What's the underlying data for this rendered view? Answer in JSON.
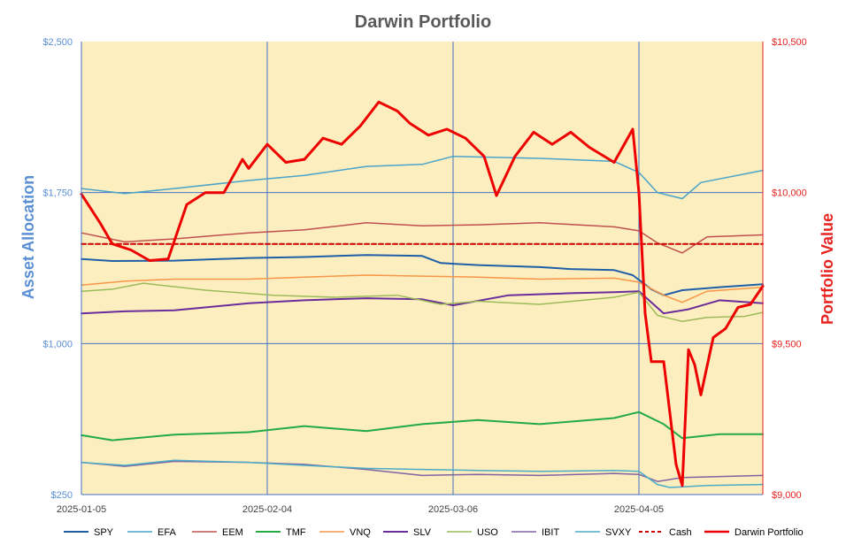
{
  "chart_data": {
    "type": "line",
    "title": "Darwin Portfolio",
    "ylabel_left": "Asset Allocation",
    "ylabel_right": "Portfolio Value",
    "left_axis": {
      "min": 250,
      "max": 2500,
      "ticks": [
        "$250",
        "$1,000",
        "$1,750",
        "$2,500"
      ]
    },
    "right_axis": {
      "min": 9000,
      "max": 10500,
      "ticks": [
        "$9,000",
        "$9,500",
        "$10,000",
        "$10,500"
      ]
    },
    "x_ticks": [
      "2025-01-05",
      "2025-02-04",
      "2025-03-06",
      "2025-04-05"
    ],
    "x_range": [
      "2025-01-05",
      "2025-04-25"
    ],
    "grid": true,
    "plot_background": "#fdeec0",
    "legend_position": "bottom",
    "series": [
      {
        "name": "SPY",
        "axis": "left",
        "color": "#1f5fa8",
        "width": 2,
        "points": [
          [
            "2025-01-05",
            1420
          ],
          [
            "2025-01-10",
            1410
          ],
          [
            "2025-01-20",
            1412
          ],
          [
            "2025-02-01",
            1425
          ],
          [
            "2025-02-10",
            1430
          ],
          [
            "2025-02-20",
            1440
          ],
          [
            "2025-03-01",
            1435
          ],
          [
            "2025-03-04",
            1400
          ],
          [
            "2025-03-10",
            1390
          ],
          [
            "2025-03-20",
            1380
          ],
          [
            "2025-03-25",
            1370
          ],
          [
            "2025-04-01",
            1365
          ],
          [
            "2025-04-04",
            1340
          ],
          [
            "2025-04-07",
            1270
          ],
          [
            "2025-04-09",
            1240
          ],
          [
            "2025-04-12",
            1265
          ],
          [
            "2025-04-18",
            1280
          ],
          [
            "2025-04-25",
            1295
          ]
        ]
      },
      {
        "name": "EFA",
        "axis": "left",
        "color": "#4aa3c9",
        "width": 1.5,
        "points": [
          [
            "2025-01-05",
            1770
          ],
          [
            "2025-01-12",
            1745
          ],
          [
            "2025-01-20",
            1770
          ],
          [
            "2025-02-01",
            1810
          ],
          [
            "2025-02-10",
            1835
          ],
          [
            "2025-02-20",
            1880
          ],
          [
            "2025-03-01",
            1890
          ],
          [
            "2025-03-06",
            1930
          ],
          [
            "2025-03-20",
            1920
          ],
          [
            "2025-04-01",
            1905
          ],
          [
            "2025-04-05",
            1850
          ],
          [
            "2025-04-08",
            1750
          ],
          [
            "2025-04-12",
            1720
          ],
          [
            "2025-04-15",
            1800
          ],
          [
            "2025-04-25",
            1860
          ]
        ]
      },
      {
        "name": "EEM",
        "axis": "left",
        "color": "#c0504d",
        "width": 1.5,
        "points": [
          [
            "2025-01-05",
            1550
          ],
          [
            "2025-01-12",
            1505
          ],
          [
            "2025-01-20",
            1520
          ],
          [
            "2025-02-01",
            1550
          ],
          [
            "2025-02-10",
            1565
          ],
          [
            "2025-02-20",
            1600
          ],
          [
            "2025-03-01",
            1585
          ],
          [
            "2025-03-10",
            1590
          ],
          [
            "2025-03-20",
            1600
          ],
          [
            "2025-04-01",
            1580
          ],
          [
            "2025-04-05",
            1560
          ],
          [
            "2025-04-08",
            1500
          ],
          [
            "2025-04-12",
            1450
          ],
          [
            "2025-04-16",
            1530
          ],
          [
            "2025-04-25",
            1540
          ]
        ]
      },
      {
        "name": "TMF",
        "axis": "left",
        "color": "#22aa44",
        "width": 2,
        "points": [
          [
            "2025-01-05",
            545
          ],
          [
            "2025-01-10",
            520
          ],
          [
            "2025-01-20",
            548
          ],
          [
            "2025-02-01",
            560
          ],
          [
            "2025-02-10",
            590
          ],
          [
            "2025-02-20",
            565
          ],
          [
            "2025-03-01",
            600
          ],
          [
            "2025-03-10",
            620
          ],
          [
            "2025-03-20",
            600
          ],
          [
            "2025-04-01",
            630
          ],
          [
            "2025-04-05",
            660
          ],
          [
            "2025-04-09",
            600
          ],
          [
            "2025-04-12",
            530
          ],
          [
            "2025-04-18",
            550
          ],
          [
            "2025-04-25",
            550
          ]
        ]
      },
      {
        "name": "VNQ",
        "axis": "left",
        "color": "#f79646",
        "width": 1.5,
        "points": [
          [
            "2025-01-05",
            1290
          ],
          [
            "2025-01-12",
            1310
          ],
          [
            "2025-01-20",
            1320
          ],
          [
            "2025-02-01",
            1320
          ],
          [
            "2025-02-10",
            1330
          ],
          [
            "2025-02-20",
            1340
          ],
          [
            "2025-03-01",
            1335
          ],
          [
            "2025-03-10",
            1330
          ],
          [
            "2025-03-20",
            1320
          ],
          [
            "2025-04-01",
            1325
          ],
          [
            "2025-04-05",
            1305
          ],
          [
            "2025-04-09",
            1240
          ],
          [
            "2025-04-12",
            1205
          ],
          [
            "2025-04-16",
            1260
          ],
          [
            "2025-04-25",
            1280
          ]
        ]
      },
      {
        "name": "SLV",
        "axis": "left",
        "color": "#6a2c9a",
        "width": 2,
        "points": [
          [
            "2025-01-05",
            1150
          ],
          [
            "2025-01-12",
            1160
          ],
          [
            "2025-01-20",
            1165
          ],
          [
            "2025-02-01",
            1200
          ],
          [
            "2025-02-10",
            1215
          ],
          [
            "2025-02-20",
            1225
          ],
          [
            "2025-03-01",
            1220
          ],
          [
            "2025-03-06",
            1190
          ],
          [
            "2025-03-15",
            1240
          ],
          [
            "2025-03-25",
            1250
          ],
          [
            "2025-04-01",
            1255
          ],
          [
            "2025-04-05",
            1260
          ],
          [
            "2025-04-09",
            1150
          ],
          [
            "2025-04-13",
            1170
          ],
          [
            "2025-04-18",
            1215
          ],
          [
            "2025-04-25",
            1200
          ]
        ]
      },
      {
        "name": "USO",
        "axis": "left",
        "color": "#9bbb59",
        "width": 1.5,
        "points": [
          [
            "2025-01-05",
            1260
          ],
          [
            "2025-01-10",
            1270
          ],
          [
            "2025-01-15",
            1300
          ],
          [
            "2025-01-25",
            1265
          ],
          [
            "2025-02-05",
            1240
          ],
          [
            "2025-02-15",
            1230
          ],
          [
            "2025-02-25",
            1240
          ],
          [
            "2025-03-04",
            1195
          ],
          [
            "2025-03-10",
            1210
          ],
          [
            "2025-03-20",
            1195
          ],
          [
            "2025-04-01",
            1230
          ],
          [
            "2025-04-05",
            1255
          ],
          [
            "2025-04-08",
            1140
          ],
          [
            "2025-04-12",
            1110
          ],
          [
            "2025-04-16",
            1130
          ],
          [
            "2025-04-22",
            1135
          ],
          [
            "2025-04-25",
            1155
          ]
        ]
      },
      {
        "name": "IBIT",
        "axis": "left",
        "color": "#8064a2",
        "width": 1.5,
        "points": [
          [
            "2025-01-05",
            410
          ],
          [
            "2025-01-12",
            390
          ],
          [
            "2025-01-20",
            415
          ],
          [
            "2025-02-01",
            410
          ],
          [
            "2025-02-10",
            400
          ],
          [
            "2025-02-20",
            375
          ],
          [
            "2025-03-01",
            345
          ],
          [
            "2025-03-10",
            350
          ],
          [
            "2025-03-20",
            345
          ],
          [
            "2025-04-01",
            355
          ],
          [
            "2025-04-05",
            350
          ],
          [
            "2025-04-08",
            315
          ],
          [
            "2025-04-12",
            335
          ],
          [
            "2025-04-25",
            345
          ]
        ]
      },
      {
        "name": "SVXY",
        "axis": "left",
        "color": "#4bacc6",
        "width": 1.5,
        "points": [
          [
            "2025-01-05",
            410
          ],
          [
            "2025-01-12",
            395
          ],
          [
            "2025-01-20",
            420
          ],
          [
            "2025-02-01",
            410
          ],
          [
            "2025-02-10",
            395
          ],
          [
            "2025-02-20",
            380
          ],
          [
            "2025-03-01",
            375
          ],
          [
            "2025-03-10",
            370
          ],
          [
            "2025-03-20",
            365
          ],
          [
            "2025-04-01",
            370
          ],
          [
            "2025-04-05",
            365
          ],
          [
            "2025-04-08",
            300
          ],
          [
            "2025-04-10",
            285
          ],
          [
            "2025-04-16",
            295
          ],
          [
            "2025-04-25",
            300
          ]
        ]
      },
      {
        "name": "Cash",
        "axis": "left",
        "color": "#cc0000",
        "width": 2,
        "dashed": true,
        "points": [
          [
            "2025-01-05",
            1495
          ],
          [
            "2025-04-25",
            1495
          ]
        ]
      },
      {
        "name": "Darwin Portfolio",
        "axis": "right",
        "color": "#ee0000",
        "width": 3,
        "points": [
          [
            "2025-01-05",
            9995
          ],
          [
            "2025-01-08",
            9900
          ],
          [
            "2025-01-10",
            9830
          ],
          [
            "2025-01-13",
            9810
          ],
          [
            "2025-01-16",
            9775
          ],
          [
            "2025-01-19",
            9780
          ],
          [
            "2025-01-22",
            9960
          ],
          [
            "2025-01-25",
            10000
          ],
          [
            "2025-01-28",
            10000
          ],
          [
            "2025-01-31",
            10110
          ],
          [
            "2025-02-01",
            10080
          ],
          [
            "2025-02-04",
            10160
          ],
          [
            "2025-02-07",
            10100
          ],
          [
            "2025-02-10",
            10110
          ],
          [
            "2025-02-13",
            10180
          ],
          [
            "2025-02-16",
            10160
          ],
          [
            "2025-02-19",
            10220
          ],
          [
            "2025-02-22",
            10300
          ],
          [
            "2025-02-25",
            10270
          ],
          [
            "2025-02-27",
            10230
          ],
          [
            "2025-03-02",
            10190
          ],
          [
            "2025-03-05",
            10210
          ],
          [
            "2025-03-08",
            10180
          ],
          [
            "2025-03-11",
            10120
          ],
          [
            "2025-03-13",
            9990
          ],
          [
            "2025-03-16",
            10120
          ],
          [
            "2025-03-19",
            10200
          ],
          [
            "2025-03-22",
            10160
          ],
          [
            "2025-03-25",
            10200
          ],
          [
            "2025-03-28",
            10150
          ],
          [
            "2025-04-01",
            10100
          ],
          [
            "2025-04-04",
            10210
          ],
          [
            "2025-04-05",
            10000
          ],
          [
            "2025-04-06",
            9600
          ],
          [
            "2025-04-07",
            9440
          ],
          [
            "2025-04-09",
            9440
          ],
          [
            "2025-04-11",
            9100
          ],
          [
            "2025-04-12",
            9030
          ],
          [
            "2025-04-13",
            9480
          ],
          [
            "2025-04-14",
            9430
          ],
          [
            "2025-04-15",
            9330
          ],
          [
            "2025-04-17",
            9520
          ],
          [
            "2025-04-19",
            9550
          ],
          [
            "2025-04-21",
            9620
          ],
          [
            "2025-04-23",
            9630
          ],
          [
            "2025-04-25",
            9690
          ]
        ]
      }
    ]
  }
}
